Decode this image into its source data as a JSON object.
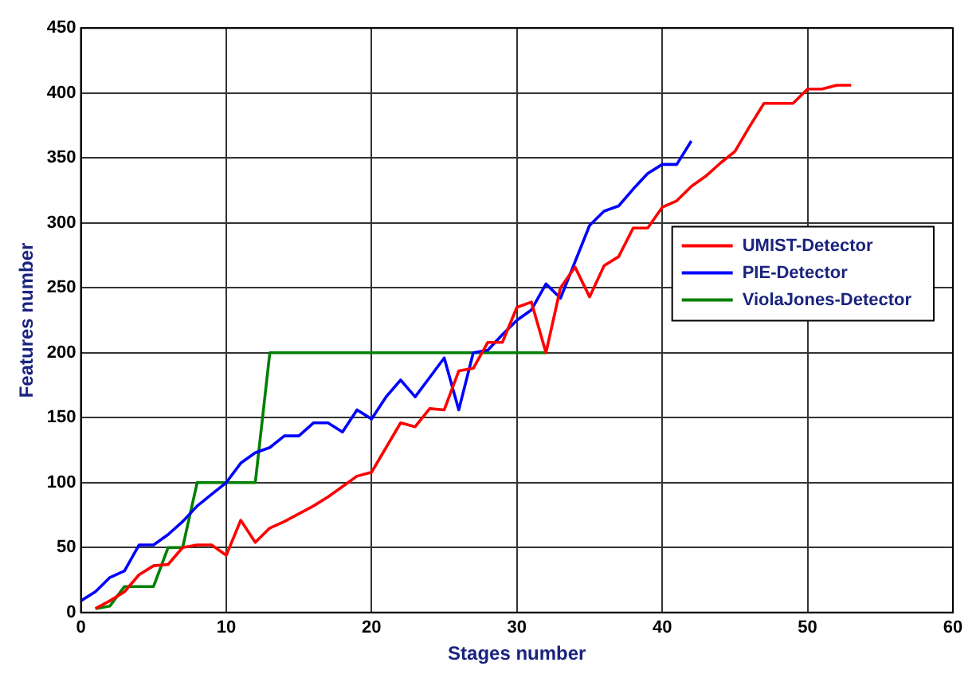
{
  "chart_data": {
    "type": "line",
    "xlabel": "Stages number",
    "ylabel": "Features number",
    "xlim": [
      0,
      60
    ],
    "xticks": [
      0,
      10,
      20,
      30,
      40,
      50,
      60
    ],
    "ylim": [
      0,
      450
    ],
    "yticks": [
      0,
      50,
      100,
      150,
      200,
      250,
      300,
      350,
      400,
      450
    ],
    "grid": true,
    "legend": "right",
    "marker": "none",
    "line_style": "solid",
    "series": [
      {
        "name": "UMIST-Detector",
        "color": "#ff0000",
        "x": [
          1,
          2,
          3,
          4,
          5,
          6,
          7,
          8,
          9,
          10,
          11,
          12,
          13,
          14,
          15,
          16,
          17,
          18,
          19,
          20,
          21,
          22,
          23,
          24,
          25,
          26,
          27,
          28,
          29,
          30,
          31,
          32,
          33,
          34,
          35,
          36,
          37,
          38,
          39,
          40,
          41,
          42,
          43,
          44,
          45,
          46,
          47,
          48,
          49,
          50,
          51,
          52,
          53
        ],
        "values": [
          3,
          9,
          16,
          29,
          36,
          37,
          50,
          52,
          52,
          44,
          71,
          54,
          65,
          70,
          76,
          82,
          89,
          97,
          105,
          108,
          127,
          146,
          143,
          157,
          156,
          186,
          188,
          208,
          208,
          235,
          239,
          200,
          250,
          266,
          243,
          267,
          274,
          296,
          296,
          312,
          317,
          328,
          336,
          346,
          355,
          374,
          392,
          392,
          392,
          403,
          403,
          406,
          406
        ]
      },
      {
        "name": "PIE-Detector",
        "color": "#0000ff",
        "x": [
          0,
          1,
          2,
          3,
          4,
          5,
          6,
          7,
          8,
          9,
          10,
          11,
          12,
          13,
          14,
          15,
          16,
          17,
          18,
          19,
          20,
          21,
          22,
          23,
          24,
          25,
          26,
          27,
          28,
          29,
          30,
          31,
          32,
          33,
          34,
          35,
          36,
          37,
          38,
          39,
          40,
          41,
          42
        ],
        "values": [
          9,
          16,
          27,
          32,
          52,
          52,
          60,
          70,
          82,
          91,
          100,
          115,
          123,
          127,
          136,
          136,
          146,
          146,
          139,
          156,
          149,
          166,
          179,
          166,
          181,
          196,
          156,
          200,
          202,
          214,
          225,
          233,
          253,
          242,
          270,
          298,
          309,
          313,
          326,
          338,
          345,
          345,
          363
        ]
      },
      {
        "name": "ViolaJones-Detector",
        "color": "#008000",
        "x": [
          1,
          2,
          3,
          5,
          6,
          7,
          8,
          12,
          13,
          32
        ],
        "values": [
          3,
          5,
          20,
          20,
          50,
          50,
          100,
          100,
          200,
          200
        ]
      }
    ]
  }
}
